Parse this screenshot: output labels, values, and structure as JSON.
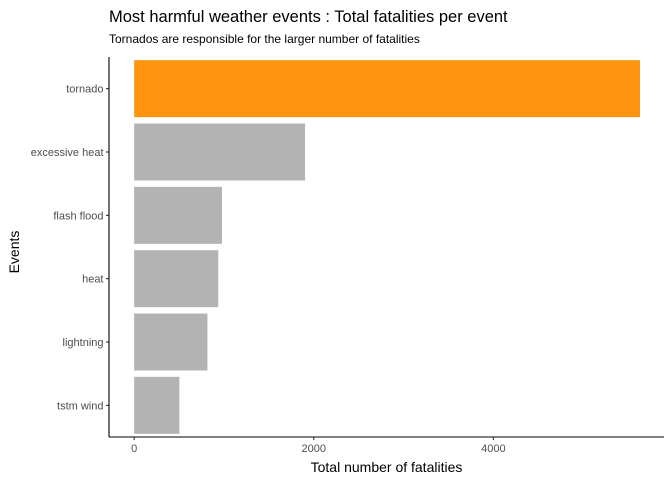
{
  "chart_data": {
    "type": "bar",
    "orientation": "horizontal",
    "title": "Most harmful weather events : Total fatalities per event",
    "subtitle": "Tornados are responsible for the larger number of fatalities",
    "xlabel": "Total number of fatalities",
    "ylabel": "Events",
    "categories": [
      "tornado",
      "excessive heat",
      "flash flood",
      "heat",
      "lightning",
      "tstm wind"
    ],
    "values": [
      5633,
      1903,
      978,
      937,
      816,
      504
    ],
    "xlim": [
      -280,
      5900
    ],
    "xticks": [
      0,
      2000,
      4000
    ],
    "highlight_category": "tornado",
    "colors": {
      "highlight": "#FF950E",
      "default": "#B3B3B3"
    },
    "grid": false,
    "legend": "none"
  }
}
